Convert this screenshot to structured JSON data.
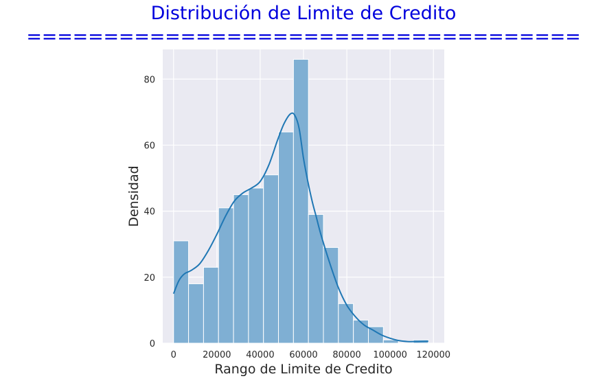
{
  "header": {
    "title": "Distribución de Limite de Credito",
    "rule": "===================================="
  },
  "chart_data": {
    "type": "bar",
    "title": "Distribución de Limite de Credito",
    "xlabel": "Rango de Limite de Credito",
    "ylabel": "Densidad",
    "xlim": [
      -5000,
      125000
    ],
    "ylim": [
      0,
      89
    ],
    "xticks": [
      0,
      20000,
      40000,
      60000,
      80000,
      100000,
      120000
    ],
    "yticks": [
      0,
      20,
      40,
      60,
      80
    ],
    "grid": true,
    "bin_edges": [
      0,
      6920,
      13840,
      20760,
      27680,
      34600,
      41520,
      48440,
      55360,
      62280,
      69200,
      76120,
      83040,
      89960,
      96880,
      103800,
      110720,
      117640
    ],
    "counts": [
      31,
      18,
      23,
      41,
      45,
      47,
      51,
      64,
      86,
      39,
      29,
      12,
      7,
      5,
      1,
      0,
      1
    ],
    "bar_color": "#7fafd3",
    "kde": {
      "color": "#1f77b4",
      "x": [
        0,
        2500,
        5000,
        8000,
        12000,
        16000,
        20000,
        24000,
        28000,
        32000,
        36000,
        40000,
        44000,
        48000,
        51000,
        54000,
        56000,
        58000,
        60000,
        62000,
        64000,
        66000,
        68000,
        72000,
        76000,
        80000,
        84000,
        88000,
        92000,
        96000,
        100000,
        104000,
        108000,
        112000,
        117640
      ],
      "y": [
        15,
        19,
        21,
        22,
        24,
        28,
        33,
        38.5,
        43,
        45.5,
        47,
        49,
        54,
        61.5,
        66.5,
        69.5,
        69,
        65,
        56,
        49,
        43,
        38,
        33,
        24.5,
        17,
        11.5,
        8,
        5.5,
        4,
        2.5,
        1.5,
        0.8,
        0.5,
        0.5,
        0.6
      ]
    }
  }
}
